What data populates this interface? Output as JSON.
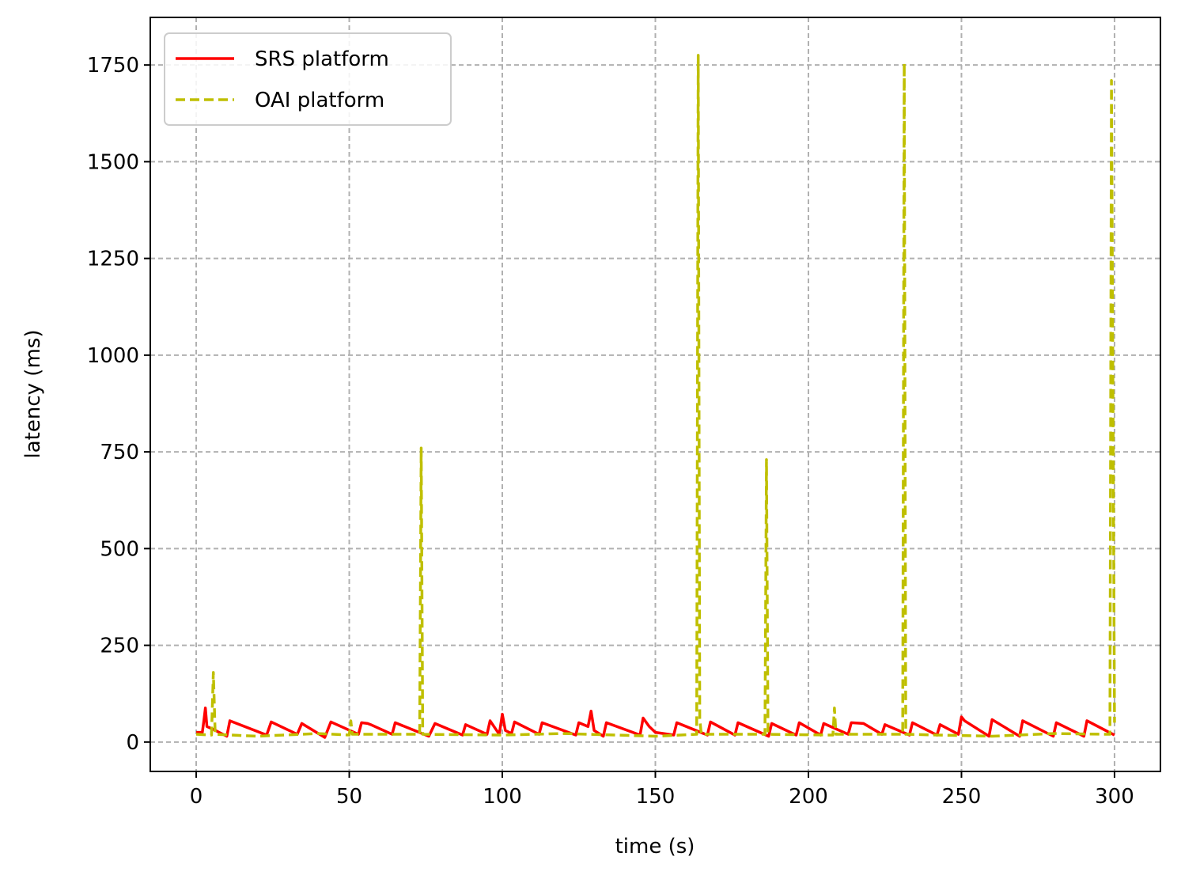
{
  "chart_data": {
    "type": "line",
    "xlabel": "time (s)",
    "ylabel": "latency (ms)",
    "xlim": [
      -15,
      315
    ],
    "ylim": [
      -76,
      1873
    ],
    "xticks": [
      0,
      50,
      100,
      150,
      200,
      250,
      300
    ],
    "yticks": [
      0,
      250,
      500,
      750,
      1000,
      1250,
      1500,
      1750
    ],
    "grid": true,
    "legend": "upper left",
    "series": [
      {
        "name": "SRS platform",
        "color": "#ff0000",
        "linestyle": "solid",
        "x": [
          0,
          2,
          2.5,
          3,
          3.5,
          5,
          10,
          11,
          23,
          24.5,
          33,
          34.5,
          42,
          44,
          53,
          54,
          56,
          57,
          64,
          65,
          76,
          78,
          87,
          88,
          95,
          96,
          99,
          100,
          101,
          103,
          104,
          112,
          113,
          124,
          125,
          128,
          129,
          130,
          133,
          134,
          145,
          146,
          148,
          150,
          156,
          157,
          167,
          168,
          176,
          177,
          187,
          188,
          196,
          197,
          204,
          205,
          213,
          214,
          218,
          224,
          225,
          233,
          234,
          242,
          243,
          249,
          250,
          251,
          259,
          260,
          269,
          270,
          280,
          281,
          290,
          291,
          300
        ],
        "values": [
          25,
          25,
          55,
          88,
          40,
          35,
          15,
          55,
          18,
          52,
          20,
          48,
          12,
          52,
          20,
          50,
          48,
          45,
          20,
          50,
          15,
          48,
          18,
          45,
          20,
          55,
          20,
          72,
          30,
          22,
          52,
          20,
          50,
          18,
          50,
          40,
          80,
          30,
          15,
          50,
          18,
          62,
          40,
          25,
          18,
          50,
          18,
          52,
          18,
          50,
          15,
          48,
          18,
          50,
          18,
          48,
          20,
          50,
          48,
          20,
          45,
          18,
          50,
          18,
          45,
          20,
          65,
          55,
          15,
          58,
          15,
          55,
          15,
          50,
          15,
          55,
          18
        ]
      },
      {
        "name": "OAI platform",
        "color": "#bfbf00",
        "linestyle": "dashed",
        "x": [
          0,
          5,
          5.6,
          6.2,
          20,
          40,
          50,
          50.5,
          51,
          73,
          73.5,
          74,
          100,
          120,
          150,
          163.5,
          164,
          164.5,
          165,
          185.8,
          186.3,
          186.8,
          208,
          208.5,
          209,
          230.8,
          231.3,
          231.8,
          260,
          280,
          298.5,
          299,
          300
        ],
        "values": [
          20,
          18,
          180,
          20,
          15,
          22,
          18,
          55,
          20,
          20,
          760,
          20,
          18,
          22,
          15,
          20,
          1775,
          60,
          20,
          20,
          730,
          20,
          18,
          88,
          20,
          20,
          1755,
          20,
          15,
          22,
          20,
          1710,
          50
        ]
      }
    ]
  }
}
